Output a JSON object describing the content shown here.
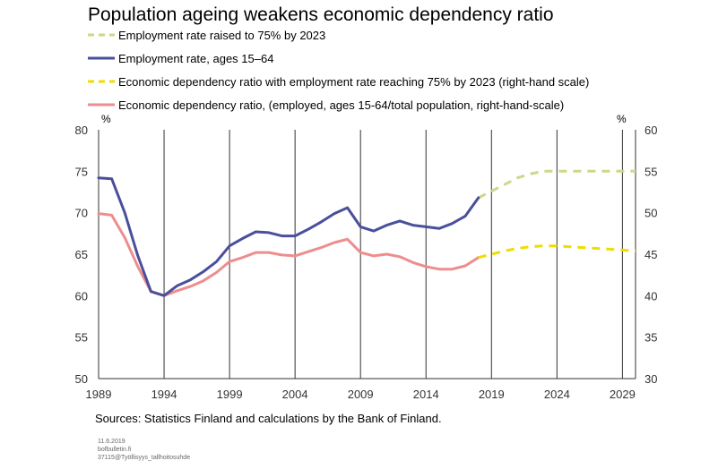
{
  "chart_data": {
    "type": "line",
    "title": "Population ageing weakens economic dependency ratio",
    "left_unit": "%",
    "right_unit": "%",
    "x_ticks": [
      1989,
      1994,
      1999,
      2004,
      2009,
      2014,
      2019,
      2024,
      2029
    ],
    "xlim": [
      1989,
      2030
    ],
    "ylim_left": [
      50,
      80
    ],
    "ylim_right": [
      30,
      60
    ],
    "y_ticks_left": [
      50,
      55,
      60,
      65,
      70,
      75,
      80
    ],
    "y_ticks_right": [
      30,
      35,
      40,
      45,
      50,
      55,
      60
    ],
    "grid": "vertical",
    "legend_position": "top",
    "series": [
      {
        "name": "Employment rate raised to 75% by 2023",
        "axis": "left",
        "style": "dashed",
        "color": "#c8d98c",
        "x": [
          2018,
          2019,
          2020,
          2021,
          2022,
          2023,
          2024,
          2025,
          2026,
          2027,
          2028,
          2029,
          2030
        ],
        "y": [
          71.8,
          72.6,
          73.4,
          74.2,
          74.7,
          75.0,
          75.0,
          75.0,
          75.0,
          75.0,
          75.0,
          75.0,
          75.0
        ]
      },
      {
        "name": "Employment  rate, ages 15–64",
        "axis": "left",
        "style": "solid",
        "color": "#4a4f9c",
        "x": [
          1989,
          1990,
          1991,
          1992,
          1993,
          1994,
          1995,
          1996,
          1997,
          1998,
          1999,
          2000,
          2001,
          2002,
          2003,
          2004,
          2005,
          2006,
          2007,
          2008,
          2009,
          2010,
          2011,
          2012,
          2013,
          2014,
          2015,
          2016,
          2017,
          2018
        ],
        "y": [
          74.2,
          74.1,
          70.0,
          64.8,
          60.5,
          60.0,
          61.2,
          61.9,
          62.9,
          64.1,
          66.0,
          66.9,
          67.7,
          67.6,
          67.2,
          67.2,
          68.0,
          68.9,
          69.9,
          70.6,
          68.3,
          67.8,
          68.5,
          69.0,
          68.5,
          68.3,
          68.1,
          68.7,
          69.6,
          71.8
        ]
      },
      {
        "name": "Economic dependency ratio with employment rate reaching 75% by 2023 (right-hand scale)",
        "axis": "right",
        "style": "dashed",
        "color": "#f0dc00",
        "x": [
          2018,
          2019,
          2020,
          2021,
          2022,
          2023,
          2024,
          2025,
          2026,
          2027,
          2028,
          2029,
          2030
        ],
        "y": [
          44.6,
          45.0,
          45.4,
          45.7,
          45.9,
          46.0,
          46.0,
          45.9,
          45.8,
          45.7,
          45.6,
          45.5,
          45.4
        ]
      },
      {
        "name": "Economic dependency ratio, (employed, ages 15-64/total population, right-hand-scale)",
        "axis": "right",
        "style": "solid",
        "color": "#ee8d8d",
        "x": [
          1989,
          1990,
          1991,
          1992,
          1993,
          1994,
          1995,
          1996,
          1997,
          1998,
          1999,
          2000,
          2001,
          2002,
          2003,
          2004,
          2005,
          2006,
          2007,
          2008,
          2009,
          2010,
          2011,
          2012,
          2013,
          2014,
          2015,
          2016,
          2017,
          2018
        ],
        "y": [
          49.9,
          49.7,
          47.0,
          43.5,
          40.5,
          40.0,
          40.6,
          41.1,
          41.8,
          42.8,
          44.1,
          44.6,
          45.2,
          45.2,
          44.9,
          44.8,
          45.3,
          45.8,
          46.4,
          46.8,
          45.2,
          44.8,
          45.0,
          44.7,
          44.0,
          43.5,
          43.2,
          43.2,
          43.6,
          44.6
        ]
      }
    ]
  },
  "sources": "Sources: Statistics Finland and calculations by the Bank of Finland.",
  "meta": {
    "date": "11.6.2019",
    "site": "bofbulletin.fi",
    "code": "37115@Työllisyys_tallhoitosuhde"
  }
}
